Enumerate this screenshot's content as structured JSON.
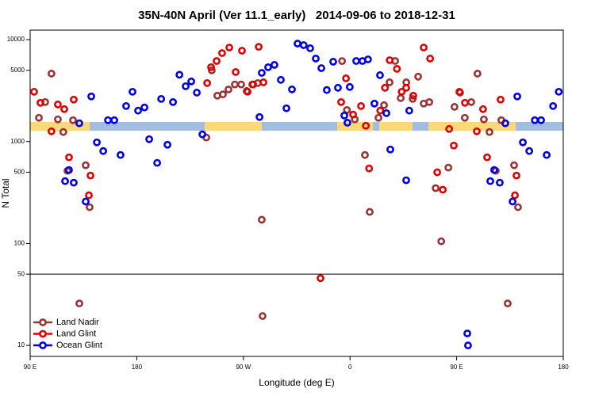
{
  "chart_data": {
    "type": "scatter",
    "title": "35N-40N April (Ver 11.1_early)   2014-09-06 to 2018-12-31",
    "xlabel": "Longitude (deg E)",
    "ylabel": "N Total",
    "xlim": [
      90,
      540
    ],
    "ylim": [
      7.8,
      12400
    ],
    "ylog": true,
    "hlines": [
      50
    ],
    "legend": "lower left",
    "xticks": [
      {
        "value": 90,
        "label": "90 E"
      },
      180,
      {
        "value": 270,
        "label": "90 W"
      },
      {
        "value": 360,
        "label": "0"
      },
      {
        "value": 450,
        "label": "90 E"
      },
      {
        "value": 540,
        "label": "180"
      }
    ],
    "yticks": [
      10,
      50,
      100,
      500,
      1000,
      5000,
      10000
    ],
    "series": [
      {
        "name": "Land Nadir",
        "color": "#9b3333",
        "x": [
          97.4,
          102.7,
          108,
          113.4,
          118,
          121.5,
          126.2,
          131.5,
          136.9,
          140.2,
          238.7,
          243.3,
          248,
          252.7,
          257.4,
          262.8,
          268.1,
          272.8,
          277.5,
          282.2,
          285.5,
          286.2,
          353.3,
          357.4,
          364,
          372.6,
          376.6,
          384,
          388.7,
          393.4,
          398.1,
          402.8,
          407.5,
          412.9,
          417.5,
          422.2,
          426.9,
          432.3,
          437,
          443,
          448.2,
          452.9,
          456.9,
          462.3,
          467.6,
          473,
          477.7,
          483,
          487.7,
          493.1,
          498.5,
          501.8
        ],
        "values": [
          1710,
          2440,
          4640,
          1650,
          1240,
          516,
          1620,
          25.8,
          585,
          227,
          1095,
          4990,
          2820,
          2900,
          3240,
          3630,
          3630,
          3130,
          3630,
          3750,
          171,
          19.4,
          6160,
          2040,
          1650,
          738,
          204,
          1710,
          2275,
          3810,
          6170,
          2670,
          3810,
          2620,
          4330,
          2360,
          2440,
          349,
          105,
          555,
          2190,
          3020,
          1710,
          2440,
          4640,
          1650,
          1240,
          516,
          1620,
          25.8,
          585,
          227
        ]
      },
      {
        "name": "Land Glint",
        "color": "#e00000",
        "x": [
          93.3,
          98.7,
          108,
          113.4,
          118.8,
          122.8,
          126.8,
          139.6,
          140.9,
          239.4,
          242.7,
          247.4,
          252,
          258.1,
          263.5,
          268.8,
          273.5,
          278.2,
          282.9,
          286.9,
          335.1,
          352.5,
          356.6,
          362.6,
          369.3,
          373.4,
          376.1,
          385.5,
          389.5,
          393.5,
          399.6,
          403.6,
          407.4,
          413.4,
          422.2,
          427.6,
          433.6,
          438.3,
          443.7,
          447.6,
          452.3,
          457,
          467,
          472.3,
          475.7,
          487.1,
          499.2,
          500.5
        ],
        "values": [
          3080,
          2400,
          1260,
          2310,
          2080,
          700,
          2580,
          297,
          464,
          3750,
          5360,
          6170,
          7380,
          8360,
          4810,
          7790,
          3080,
          3630,
          8500,
          3810,
          45.6,
          2440,
          4170,
          1840,
          2230,
          1430,
          545,
          2010,
          3370,
          6280,
          5170,
          3080,
          3370,
          2820,
          8360,
          6520,
          499,
          337,
          1330,
          914,
          3080,
          2400,
          1260,
          2080,
          700,
          2580,
          297,
          464
        ]
      },
      {
        "name": "Ocean Glint",
        "color": "#0000e6",
        "x": [
          119.5,
          122.8,
          126.8,
          131.5,
          136.9,
          141.6,
          146.3,
          151.7,
          155.7,
          161,
          166.3,
          171,
          176.4,
          181.1,
          186.5,
          190.5,
          197.2,
          200.6,
          205.9,
          210.6,
          216,
          221.3,
          226,
          230.7,
          235.4,
          283.6,
          285.5,
          290.9,
          296.2,
          301.6,
          306.3,
          311,
          315.7,
          320.9,
          326.4,
          331.1,
          335.8,
          340.4,
          345.8,
          349.8,
          355.2,
          357.8,
          359.8,
          365.2,
          370.5,
          375.2,
          380.6,
          385.3,
          390.7,
          394,
          407.4,
          410,
          459,
          459.6,
          478.4,
          481.7,
          486.4,
          491.1,
          497.2,
          501.2,
          505.9,
          511.3,
          516,
          521.3,
          526,
          531.4,
          536.2
        ],
        "values": [
          409,
          526,
          395,
          1510,
          258,
          2770,
          982,
          807,
          1620,
          1620,
          738,
          2230,
          3080,
          2010,
          2160,
          1055,
          618,
          2620,
          930,
          2440,
          4520,
          3490,
          3890,
          3020,
          1175,
          1740,
          4720,
          5360,
          5650,
          4030,
          2120,
          3250,
          9140,
          8830,
          8230,
          6520,
          5250,
          3200,
          6070,
          3370,
          1800,
          1530,
          3430,
          6170,
          6170,
          6400,
          2360,
          4480,
          1900,
          836,
          417,
          2010,
          13.1,
          10,
          409,
          526,
          395,
          1510,
          258,
          2770,
          982,
          807,
          1620,
          1620,
          738,
          2230,
          3080
        ]
      }
    ]
  }
}
